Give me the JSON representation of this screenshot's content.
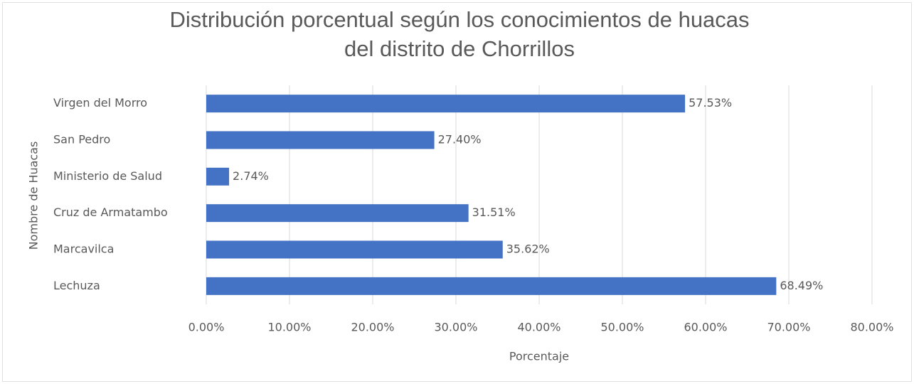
{
  "chart_data": {
    "type": "bar",
    "orientation": "horizontal",
    "title": [
      "Distribución porcentual según los conocimientos de huacas",
      "del distrito de Chorrillos"
    ],
    "xlabel": "Porcentaje",
    "ylabel": "Nombre de Huacas",
    "categories": [
      "Virgen del Morro",
      "San Pedro",
      "Ministerio de Salud",
      "Cruz de Armatambo",
      "Marcavilca",
      "Lechuza"
    ],
    "values": [
      57.53,
      27.4,
      2.74,
      31.51,
      35.62,
      68.49
    ],
    "value_labels": [
      "57.53%",
      "27.40%",
      "2.74%",
      "31.51%",
      "35.62%",
      "68.49%"
    ],
    "color": "#4472c4",
    "xlim": [
      0,
      80
    ],
    "xticks": [
      {
        "value": 0,
        "label": "0.00%"
      },
      {
        "value": 10,
        "label": "10.00%"
      },
      {
        "value": 20,
        "label": "20.00%"
      },
      {
        "value": 30,
        "label": "30.00%"
      },
      {
        "value": 40,
        "label": "40.00%"
      },
      {
        "value": 50,
        "label": "50.00%"
      },
      {
        "value": 60,
        "label": "60.00%"
      },
      {
        "value": 70,
        "label": "70.00%"
      },
      {
        "value": 80,
        "label": "80.00%"
      }
    ],
    "grid": true
  }
}
